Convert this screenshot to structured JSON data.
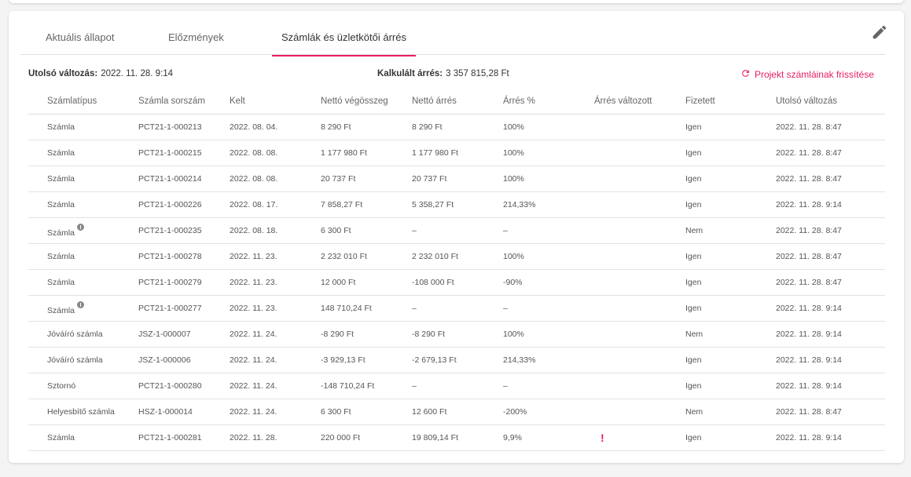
{
  "tabs": [
    "Aktuális állapot",
    "Előzmények",
    "Számlák és üzletkötői árrés"
  ],
  "active_tab": 2,
  "last_change_label": "Utolsó változás:",
  "last_change_value": "2022. 11. 28. 9:14",
  "margin_label": "Kalkulált árrés:",
  "margin_value": "3 357 815,28 Ft",
  "refresh_label": "Projekt számláinak frissítése",
  "columns": [
    "Számlatípus",
    "Számla sorszám",
    "Kelt",
    "Nettó végösszeg",
    "Nettó árrés",
    "Árrés %",
    "Árrés változott",
    "Fizetett",
    "Utolsó változás"
  ],
  "rows": [
    [
      "Számla",
      "PCT21-1-000213",
      "2022. 08. 04.",
      "8 290 Ft",
      "8 290 Ft",
      "100%",
      "",
      "Igen",
      "2022. 11. 28. 8:47"
    ],
    [
      "Számla",
      "PCT21-1-000215",
      "2022. 08. 08.",
      "1 177 980 Ft",
      "1 177 980 Ft",
      "100%",
      "",
      "Igen",
      "2022. 11. 28. 8:47"
    ],
    [
      "Számla",
      "PCT21-1-000214",
      "2022. 08. 08.",
      "20 737 Ft",
      "20 737 Ft",
      "100%",
      "",
      "Igen",
      "2022. 11. 28. 8:47"
    ],
    [
      "Számla",
      "PCT21-1-000226",
      "2022. 08. 17.",
      "7 858,27 Ft",
      "5 358,27 Ft",
      "214,33%",
      "",
      "Igen",
      "2022. 11. 28. 9:14"
    ],
    [
      "Számla",
      "PCT21-1-000235",
      "2022. 08. 18.",
      "6 300 Ft",
      "–",
      "–",
      "",
      "Nem",
      "2022. 11. 28. 8:47"
    ],
    [
      "Számla",
      "PCT21-1-000278",
      "2022. 11. 23.",
      "2 232 010 Ft",
      "2 232 010 Ft",
      "100%",
      "",
      "Igen",
      "2022. 11. 28. 8:47"
    ],
    [
      "Számla",
      "PCT21-1-000279",
      "2022. 11. 23.",
      "12 000 Ft",
      "-108 000 Ft",
      "-90%",
      "",
      "Igen",
      "2022. 11. 28. 8:47"
    ],
    [
      "Számla",
      "PCT21-1-000277",
      "2022. 11. 23.",
      "148 710,24 Ft",
      "–",
      "–",
      "",
      "Igen",
      "2022. 11. 28. 9:14"
    ],
    [
      "Jóváíró számla",
      "JSZ-1-000007",
      "2022. 11. 24.",
      "-8 290 Ft",
      "-8 290 Ft",
      "100%",
      "",
      "Nem",
      "2022. 11. 28. 9:14"
    ],
    [
      "Jóváíró számla",
      "JSZ-1-000006",
      "2022. 11. 24.",
      "-3 929,13 Ft",
      "-2 679,13 Ft",
      "214,33%",
      "",
      "Igen",
      "2022. 11. 28. 9:14"
    ],
    [
      "Sztornó",
      "PCT21-1-000280",
      "2022. 11. 24.",
      "-148 710,24 Ft",
      "–",
      "–",
      "",
      "Igen",
      "2022. 11. 28. 9:14"
    ],
    [
      "Helyesbítő számla",
      "HSZ-1-000014",
      "2022. 11. 24.",
      "6 300 Ft",
      "12 600 Ft",
      "-200%",
      "",
      "Nem",
      "2022. 11. 28. 8:47"
    ],
    [
      "Számla",
      "PCT21-1-000281",
      "2022. 11. 28.",
      "220 000 Ft",
      "19 809,14 Ft",
      "9,9%",
      "!",
      "Igen",
      "2022. 11. 28. 9:14"
    ]
  ],
  "info_rows": [
    4,
    7
  ],
  "accent": "#e91e63"
}
